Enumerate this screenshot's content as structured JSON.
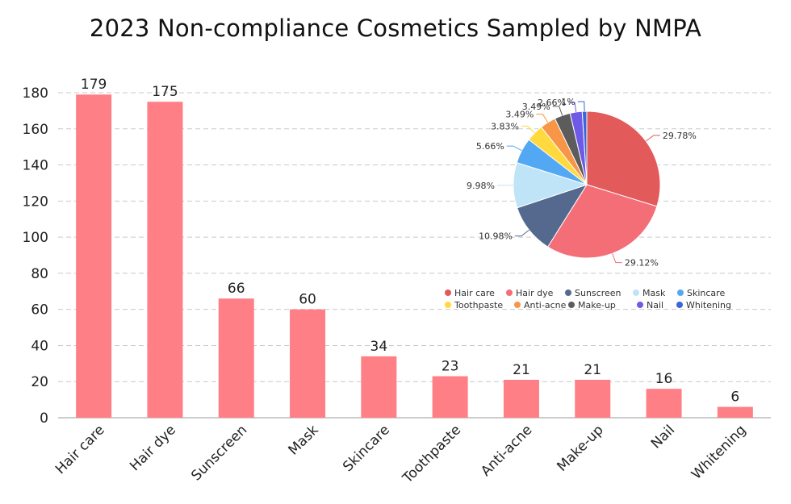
{
  "chart_data": [
    {
      "type": "bar",
      "title": "2023 Non-compliance Cosmetics Sampled by NMPA",
      "categories": [
        "Hair care",
        "Hair dye",
        "Sunscreen",
        "Mask",
        "Skincare",
        "Toothpaste",
        "Anti-acne",
        "Make-up",
        "Nail",
        "Whitening"
      ],
      "values": [
        179,
        175,
        66,
        60,
        34,
        23,
        21,
        21,
        16,
        6
      ],
      "ylim": [
        0,
        180
      ],
      "yticks": [
        0,
        20,
        40,
        60,
        80,
        100,
        120,
        140,
        160,
        180
      ],
      "grid": true,
      "bar_color": "#ff7f86"
    },
    {
      "type": "pie",
      "labels": [
        "Hair care",
        "Hair dye",
        "Sunscreen",
        "Mask",
        "Skincare",
        "Toothpaste",
        "Anti-acne",
        "Make-up",
        "Nail",
        "Whitening"
      ],
      "values": [
        29.78,
        29.12,
        10.98,
        9.98,
        5.66,
        3.83,
        3.49,
        3.49,
        2.66,
        1
      ],
      "value_labels": [
        "29.78%",
        "29.12%",
        "10.98%",
        "9.98%",
        "5.66%",
        "3.83%",
        "3.49%",
        "3.49%",
        "2.66%",
        "1%"
      ],
      "colors": [
        "#e25a5a",
        "#f46e78",
        "#55698f",
        "#bfe4f7",
        "#52a8f2",
        "#ffd93d",
        "#f79647",
        "#5c5c5c",
        "#6e5ae6",
        "#3a66d9"
      ],
      "legend_position": "bottom"
    }
  ]
}
